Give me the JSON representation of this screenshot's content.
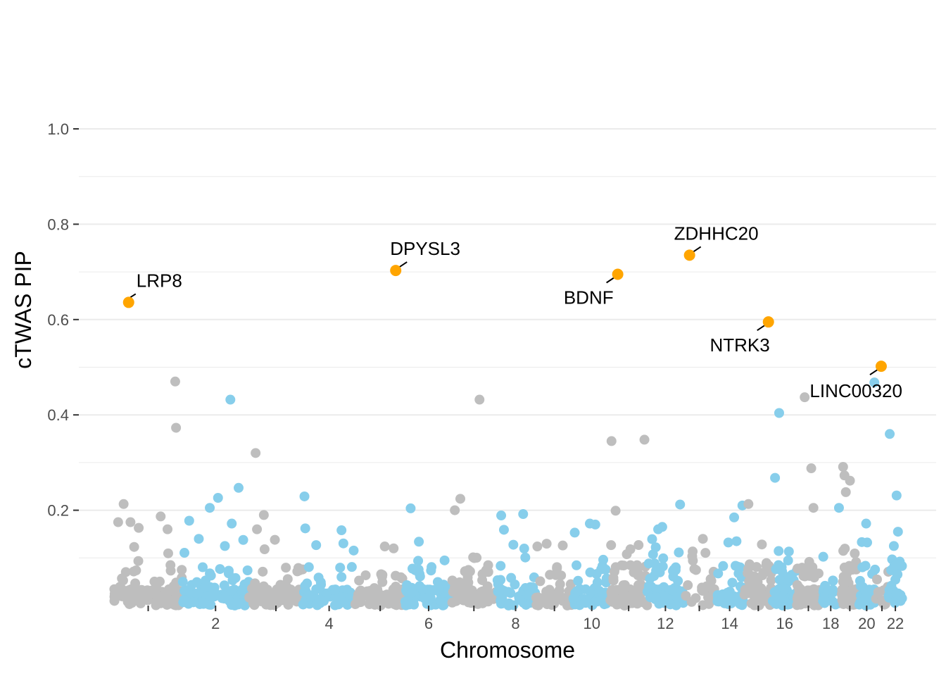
{
  "colors": {
    "odd_chromosome": "#bebebe",
    "even_chromosome": "#87ceeb",
    "highlight": "#ffa500",
    "gridline": "#ebebeb",
    "text": "#4d4d4d"
  },
  "chart_data": {
    "type": "scatter",
    "title": "",
    "xlabel": "Chromosome",
    "ylabel": "cTWAS PIP",
    "ylim": [
      0,
      1.0
    ],
    "yticks": [
      "0.2",
      "0.4",
      "0.6",
      "0.8",
      "1.0"
    ],
    "ytick_values": [
      0.2,
      0.4,
      0.6,
      0.8,
      1.0
    ],
    "grid": true,
    "legend": "none",
    "chromosome_ticks": [
      {
        "chr": 1,
        "label": ""
      },
      {
        "chr": 2,
        "label": "2"
      },
      {
        "chr": 3,
        "label": ""
      },
      {
        "chr": 4,
        "label": "4"
      },
      {
        "chr": 5,
        "label": ""
      },
      {
        "chr": 6,
        "label": "6"
      },
      {
        "chr": 7,
        "label": ""
      },
      {
        "chr": 8,
        "label": "8"
      },
      {
        "chr": 9,
        "label": ""
      },
      {
        "chr": 10,
        "label": "10"
      },
      {
        "chr": 11,
        "label": ""
      },
      {
        "chr": 12,
        "label": "12"
      },
      {
        "chr": 13,
        "label": ""
      },
      {
        "chr": 14,
        "label": "14"
      },
      {
        "chr": 15,
        "label": ""
      },
      {
        "chr": 16,
        "label": "16"
      },
      {
        "chr": 17,
        "label": ""
      },
      {
        "chr": 18,
        "label": "18"
      },
      {
        "chr": 19,
        "label": ""
      },
      {
        "chr": 20,
        "label": "20"
      },
      {
        "chr": 21,
        "label": ""
      },
      {
        "chr": 22,
        "label": "22"
      }
    ],
    "chromosome_lengths_mb": [
      249,
      242,
      198,
      190,
      182,
      171,
      159,
      145,
      138,
      134,
      135,
      133,
      114,
      107,
      102,
      90,
      83,
      80,
      59,
      64,
      47,
      51
    ],
    "highlighted_genes": [
      {
        "gene": "LRP8",
        "chr": 1,
        "pos_mb": 53.2,
        "pip": 0.636
      },
      {
        "gene": "DPYSL3",
        "chr": 5,
        "pos_mb": 147.6,
        "pip": 0.703
      },
      {
        "gene": "BDNF",
        "chr": 11,
        "pos_mb": 27.7,
        "pip": 0.695
      },
      {
        "gene": "ZDHHC20",
        "chr": 13,
        "pos_mb": 21.4,
        "pip": 0.735
      },
      {
        "gene": "NTRK3",
        "chr": 15,
        "pos_mb": 87.9,
        "pip": 0.595
      },
      {
        "gene": "LINC00320",
        "chr": 21,
        "pos_mb": 20.9,
        "pip": 0.502
      }
    ],
    "notable_points": [
      {
        "chr": 1,
        "pos_mb": 15,
        "pip": 0.175
      },
      {
        "chr": 1,
        "pos_mb": 35,
        "pip": 0.213
      },
      {
        "chr": 1,
        "pos_mb": 60,
        "pip": 0.175
      },
      {
        "chr": 1,
        "pos_mb": 90,
        "pip": 0.163
      },
      {
        "chr": 1,
        "pos_mb": 170,
        "pip": 0.187
      },
      {
        "chr": 1,
        "pos_mb": 195,
        "pip": 0.16
      },
      {
        "chr": 1,
        "pos_mb": 223,
        "pip": 0.47
      },
      {
        "chr": 1,
        "pos_mb": 226,
        "pip": 0.373
      },
      {
        "chr": 2,
        "pos_mb": 25,
        "pip": 0.178
      },
      {
        "chr": 2,
        "pos_mb": 60,
        "pip": 0.14
      },
      {
        "chr": 2,
        "pos_mb": 100,
        "pip": 0.205
      },
      {
        "chr": 2,
        "pos_mb": 130,
        "pip": 0.226
      },
      {
        "chr": 2,
        "pos_mb": 155,
        "pip": 0.125
      },
      {
        "chr": 2,
        "pos_mb": 175,
        "pip": 0.432
      },
      {
        "chr": 2,
        "pos_mb": 180,
        "pip": 0.172
      },
      {
        "chr": 2,
        "pos_mb": 205,
        "pip": 0.247
      },
      {
        "chr": 3,
        "pos_mb": 25,
        "pip": 0.32
      },
      {
        "chr": 3,
        "pos_mb": 55,
        "pip": 0.19
      },
      {
        "chr": 3,
        "pos_mb": 30,
        "pip": 0.16
      },
      {
        "chr": 4,
        "pos_mb": 5,
        "pip": 0.229
      },
      {
        "chr": 4,
        "pos_mb": 8,
        "pip": 0.162
      },
      {
        "chr": 4,
        "pos_mb": 140,
        "pip": 0.158
      },
      {
        "chr": 5,
        "pos_mb": 140,
        "pip": 0.12
      },
      {
        "chr": 6,
        "pos_mb": 20,
        "pip": 0.204
      },
      {
        "chr": 6,
        "pos_mb": 50,
        "pip": 0.134
      },
      {
        "chr": 7,
        "pos_mb": 10,
        "pip": 0.2
      },
      {
        "chr": 7,
        "pos_mb": 30,
        "pip": 0.224
      },
      {
        "chr": 7,
        "pos_mb": 100,
        "pip": 0.432
      },
      {
        "chr": 8,
        "pos_mb": 20,
        "pip": 0.189
      },
      {
        "chr": 8,
        "pos_mb": 30,
        "pip": 0.159
      },
      {
        "chr": 8,
        "pos_mb": 100,
        "pip": 0.192
      },
      {
        "chr": 10,
        "pos_mb": 5,
        "pip": 0.153
      },
      {
        "chr": 10,
        "pos_mb": 60,
        "pip": 0.172
      },
      {
        "chr": 10,
        "pos_mb": 80,
        "pip": 0.17
      },
      {
        "chr": 11,
        "pos_mb": 5,
        "pip": 0.345
      },
      {
        "chr": 11,
        "pos_mb": 20,
        "pip": 0.199
      },
      {
        "chr": 11,
        "pos_mb": 125,
        "pip": 0.348
      },
      {
        "chr": 12,
        "pos_mb": 40,
        "pip": 0.16
      },
      {
        "chr": 12,
        "pos_mb": 55,
        "pip": 0.165
      },
      {
        "chr": 12,
        "pos_mb": 120,
        "pip": 0.212
      },
      {
        "chr": 13,
        "pos_mb": 70,
        "pip": 0.14
      },
      {
        "chr": 14,
        "pos_mb": 70,
        "pip": 0.185
      },
      {
        "chr": 14,
        "pos_mb": 100,
        "pip": 0.21
      },
      {
        "chr": 15,
        "pos_mb": 15,
        "pip": 0.213
      },
      {
        "chr": 16,
        "pos_mb": 10,
        "pip": 0.268
      },
      {
        "chr": 16,
        "pos_mb": 25,
        "pip": 0.404
      },
      {
        "chr": 17,
        "pos_mb": 28,
        "pip": 0.437
      },
      {
        "chr": 17,
        "pos_mb": 52,
        "pip": 0.288
      },
      {
        "chr": 17,
        "pos_mb": 60,
        "pip": 0.205
      },
      {
        "chr": 18,
        "pos_mb": 70,
        "pip": 0.205
      },
      {
        "chr": 19,
        "pos_mb": 5,
        "pip": 0.291
      },
      {
        "chr": 19,
        "pos_mb": 10,
        "pip": 0.273
      },
      {
        "chr": 19,
        "pos_mb": 30,
        "pip": 0.262
      },
      {
        "chr": 19,
        "pos_mb": 15,
        "pip": 0.238
      },
      {
        "chr": 20,
        "pos_mb": 30,
        "pip": 0.172
      },
      {
        "chr": 20,
        "pos_mb": 60,
        "pip": 0.468
      },
      {
        "chr": 22,
        "pos_mb": 5,
        "pip": 0.36
      },
      {
        "chr": 22,
        "pos_mb": 30,
        "pip": 0.231
      },
      {
        "chr": 22,
        "pos_mb": 35,
        "pip": 0.155
      },
      {
        "chr": 22,
        "pos_mb": 20,
        "pip": 0.125
      }
    ],
    "background_genes_per_chromosome": [
      110,
      80,
      65,
      55,
      60,
      70,
      65,
      50,
      50,
      55,
      75,
      70,
      25,
      40,
      45,
      55,
      75,
      20,
      80,
      35,
      15,
      30
    ]
  }
}
